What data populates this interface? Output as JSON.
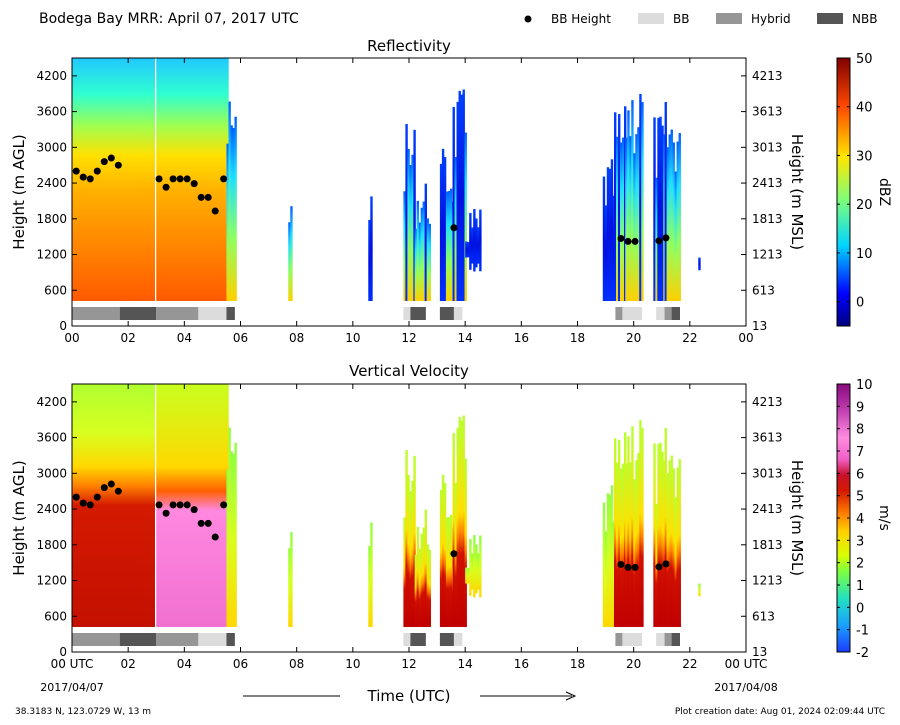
{
  "figure": {
    "header_title": "Bodega Bay MRR:  April 07, 2017 UTC",
    "legend": [
      {
        "label": "BB Height",
        "kind": "marker",
        "color": "#000000"
      },
      {
        "label": "BB",
        "kind": "swatch",
        "color": "#dcdcdc"
      },
      {
        "label": "Hybrid",
        "kind": "swatch",
        "color": "#969696"
      },
      {
        "label": "NBB",
        "kind": "swatch",
        "color": "#555555"
      }
    ],
    "x_axis_title": "Time (UTC)",
    "date_left": "2017/04/07",
    "date_right": "2017/04/08",
    "location": "38.3183 N, 123.0729 W, 13 m",
    "creation": "Plot creation date: Aug 01, 2024 02:09:44 UTC"
  },
  "chart_data": [
    {
      "type": "heatmap",
      "title": "Reflectivity",
      "ylabel": "Height (m AGL)",
      "ylabel_right": "Height (m MSL)",
      "colorbar_label": "dBZ",
      "colorbar_ticks": [
        "50",
        "40",
        "30",
        "20",
        "10",
        "0"
      ],
      "colorbar_range": [
        -5,
        50
      ],
      "xlim": [
        0,
        24
      ],
      "ylim": [
        0,
        4500
      ],
      "x_tick_labels": [
        "00",
        "02",
        "04",
        "06",
        "08",
        "10",
        "12",
        "14",
        "16",
        "18",
        "20",
        "22",
        "00"
      ],
      "y_tick_labels": [
        "0",
        "600",
        "1200",
        "1800",
        "2400",
        "3000",
        "3600",
        "4200"
      ],
      "y_right_tick_labels": [
        "13",
        "613",
        "1213",
        "1813",
        "2413",
        "3013",
        "3613",
        "4213"
      ],
      "bb_height_points": [
        {
          "t": 0.15,
          "h": 2600
        },
        {
          "t": 0.4,
          "h": 2500
        },
        {
          "t": 0.65,
          "h": 2470
        },
        {
          "t": 0.9,
          "h": 2600
        },
        {
          "t": 1.15,
          "h": 2760
        },
        {
          "t": 1.4,
          "h": 2820
        },
        {
          "t": 1.65,
          "h": 2700
        },
        {
          "t": 3.1,
          "h": 2470
        },
        {
          "t": 3.35,
          "h": 2330
        },
        {
          "t": 3.6,
          "h": 2470
        },
        {
          "t": 3.85,
          "h": 2470
        },
        {
          "t": 4.1,
          "h": 2470
        },
        {
          "t": 4.35,
          "h": 2390
        },
        {
          "t": 4.6,
          "h": 2160
        },
        {
          "t": 4.85,
          "h": 2160
        },
        {
          "t": 5.1,
          "h": 1930
        },
        {
          "t": 5.4,
          "h": 2470
        },
        {
          "t": 13.6,
          "h": 1650
        },
        {
          "t": 19.55,
          "h": 1470
        },
        {
          "t": 19.8,
          "h": 1420
        },
        {
          "t": 20.05,
          "h": 1420
        },
        {
          "t": 20.9,
          "h": 1430
        },
        {
          "t": 21.15,
          "h": 1480
        }
      ],
      "rain_blocks": [
        {
          "start": 0.0,
          "end": 1.7,
          "class": "Hybrid"
        },
        {
          "start": 1.7,
          "end": 3.0,
          "class": "NBB"
        },
        {
          "start": 3.0,
          "end": 4.5,
          "class": "Hybrid"
        },
        {
          "start": 4.5,
          "end": 5.5,
          "class": "BB"
        },
        {
          "start": 5.5,
          "end": 5.8,
          "class": "NBB"
        },
        {
          "start": 11.8,
          "end": 12.05,
          "class": "BB"
        },
        {
          "start": 12.05,
          "end": 12.6,
          "class": "NBB"
        },
        {
          "start": 13.1,
          "end": 13.6,
          "class": "NBB"
        },
        {
          "start": 13.6,
          "end": 13.9,
          "class": "BB"
        },
        {
          "start": 19.35,
          "end": 19.6,
          "class": "Hybrid"
        },
        {
          "start": 19.6,
          "end": 20.3,
          "class": "BB"
        },
        {
          "start": 20.8,
          "end": 21.1,
          "class": "BB"
        },
        {
          "start": 21.1,
          "end": 21.35,
          "class": "Hybrid"
        },
        {
          "start": 21.35,
          "end": 21.65,
          "class": "NBB"
        }
      ]
    },
    {
      "type": "heatmap",
      "title": "Vertical Velocity",
      "ylabel": "Height (m AGL)",
      "ylabel_right": "Height (m MSL)",
      "colorbar_label": "m/s",
      "colorbar_ticks": [
        "10",
        "9",
        "8",
        "7",
        "6",
        "5",
        "4",
        "3",
        "2",
        "1",
        "0",
        "-1",
        "-2"
      ],
      "colorbar_range": [
        -2,
        10
      ],
      "xlim": [
        0,
        24
      ],
      "ylim": [
        0,
        4500
      ],
      "x_tick_labels": [
        "00 UTC",
        "02",
        "04",
        "06",
        "08",
        "10",
        "12",
        "14",
        "16",
        "18",
        "20",
        "22",
        "00 UTC"
      ],
      "y_tick_labels": [
        "0",
        "600",
        "1200",
        "1800",
        "2400",
        "3000",
        "3600",
        "4200"
      ],
      "y_right_tick_labels": [
        "13",
        "613",
        "1213",
        "1813",
        "2413",
        "3013",
        "3613",
        "4213"
      ]
    }
  ]
}
